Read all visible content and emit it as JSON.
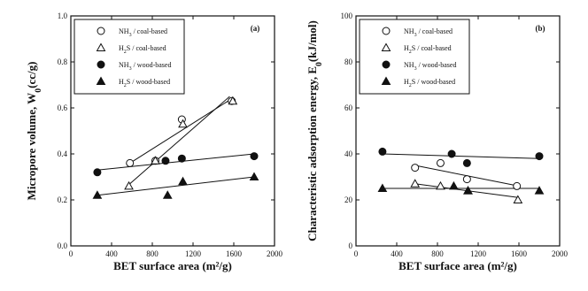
{
  "chart_data": [
    {
      "type": "scatter",
      "panel_label": "(a)",
      "xlabel": "BET surface area (m²/g)",
      "ylabel": "Micropore volume, W₀(cc/g)",
      "xlim": [
        0,
        2000
      ],
      "ylim": [
        0.0,
        1.0
      ],
      "xticks": [
        "0",
        "400",
        "800",
        "1200",
        "1600",
        "2000"
      ],
      "yticks": [
        "0.0",
        "0.2",
        "0.4",
        "0.6",
        "0.8",
        "1.0"
      ],
      "legend_position": "top-left",
      "series": [
        {
          "name": "NH₃ / coal-based",
          "marker": "open-circle",
          "points": [
            [
              580,
              0.36
            ],
            [
              830,
              0.37
            ],
            [
              1090,
              0.55
            ],
            [
              1580,
              0.63
            ]
          ],
          "fit": [
            [
              580,
              0.36
            ],
            [
              1580,
              0.64
            ]
          ]
        },
        {
          "name": "H₂S / coal-based",
          "marker": "open-triangle",
          "points": [
            [
              570,
              0.26
            ],
            [
              830,
              0.37
            ],
            [
              1100,
              0.53
            ],
            [
              1590,
              0.63
            ]
          ],
          "fit": [
            [
              580,
              0.27
            ],
            [
              1560,
              0.65
            ]
          ]
        },
        {
          "name": "NH₃ / wood-based",
          "marker": "filled-circle",
          "points": [
            [
              260,
              0.32
            ],
            [
              930,
              0.37
            ],
            [
              1090,
              0.38
            ],
            [
              1800,
              0.39
            ]
          ],
          "fit": [
            [
              260,
              0.33
            ],
            [
              1800,
              0.4
            ]
          ]
        },
        {
          "name": "H₂S / wood-based",
          "marker": "filled-triangle",
          "points": [
            [
              260,
              0.22
            ],
            [
              950,
              0.22
            ],
            [
              1100,
              0.28
            ],
            [
              1800,
              0.3
            ]
          ],
          "fit": [
            [
              260,
              0.22
            ],
            [
              1800,
              0.3
            ]
          ]
        }
      ]
    },
    {
      "type": "scatter",
      "panel_label": "(b)",
      "xlabel": "BET surface area (m²/g)",
      "ylabel": "Characteristic adsorption energy, E₀(kJ/mol)",
      "xlim": [
        0,
        2000
      ],
      "ylim": [
        0,
        100
      ],
      "xticks": [
        "0",
        "400",
        "800",
        "1200",
        "1600",
        "2000"
      ],
      "yticks": [
        "0",
        "20",
        "40",
        "60",
        "80",
        "100"
      ],
      "legend_position": "top-left",
      "series": [
        {
          "name": "NH₃ / coal-based",
          "marker": "open-circle",
          "points": [
            [
              580,
              34
            ],
            [
              830,
              36
            ],
            [
              1090,
              29
            ],
            [
              1580,
              26
            ]
          ],
          "fit": [
            [
              580,
              35
            ],
            [
              1600,
              26
            ]
          ]
        },
        {
          "name": "H₂S / coal-based",
          "marker": "open-triangle",
          "points": [
            [
              580,
              27
            ],
            [
              830,
              26
            ],
            [
              1100,
              24
            ],
            [
              1590,
              20
            ]
          ],
          "fit": [
            [
              580,
              27
            ],
            [
              1600,
              21
            ]
          ]
        },
        {
          "name": "NH₃ / wood-based",
          "marker": "filled-circle",
          "points": [
            [
              260,
              41
            ],
            [
              940,
              40
            ],
            [
              1090,
              36
            ],
            [
              1800,
              39
            ]
          ],
          "fit": [
            [
              260,
              40
            ],
            [
              1800,
              38
            ]
          ]
        },
        {
          "name": "H₂S / wood-based",
          "marker": "filled-triangle",
          "points": [
            [
              260,
              25
            ],
            [
              960,
              26
            ],
            [
              1100,
              24
            ],
            [
              1800,
              24
            ]
          ],
          "fit": [
            [
              260,
              25
            ],
            [
              1800,
              25
            ]
          ]
        }
      ]
    }
  ]
}
